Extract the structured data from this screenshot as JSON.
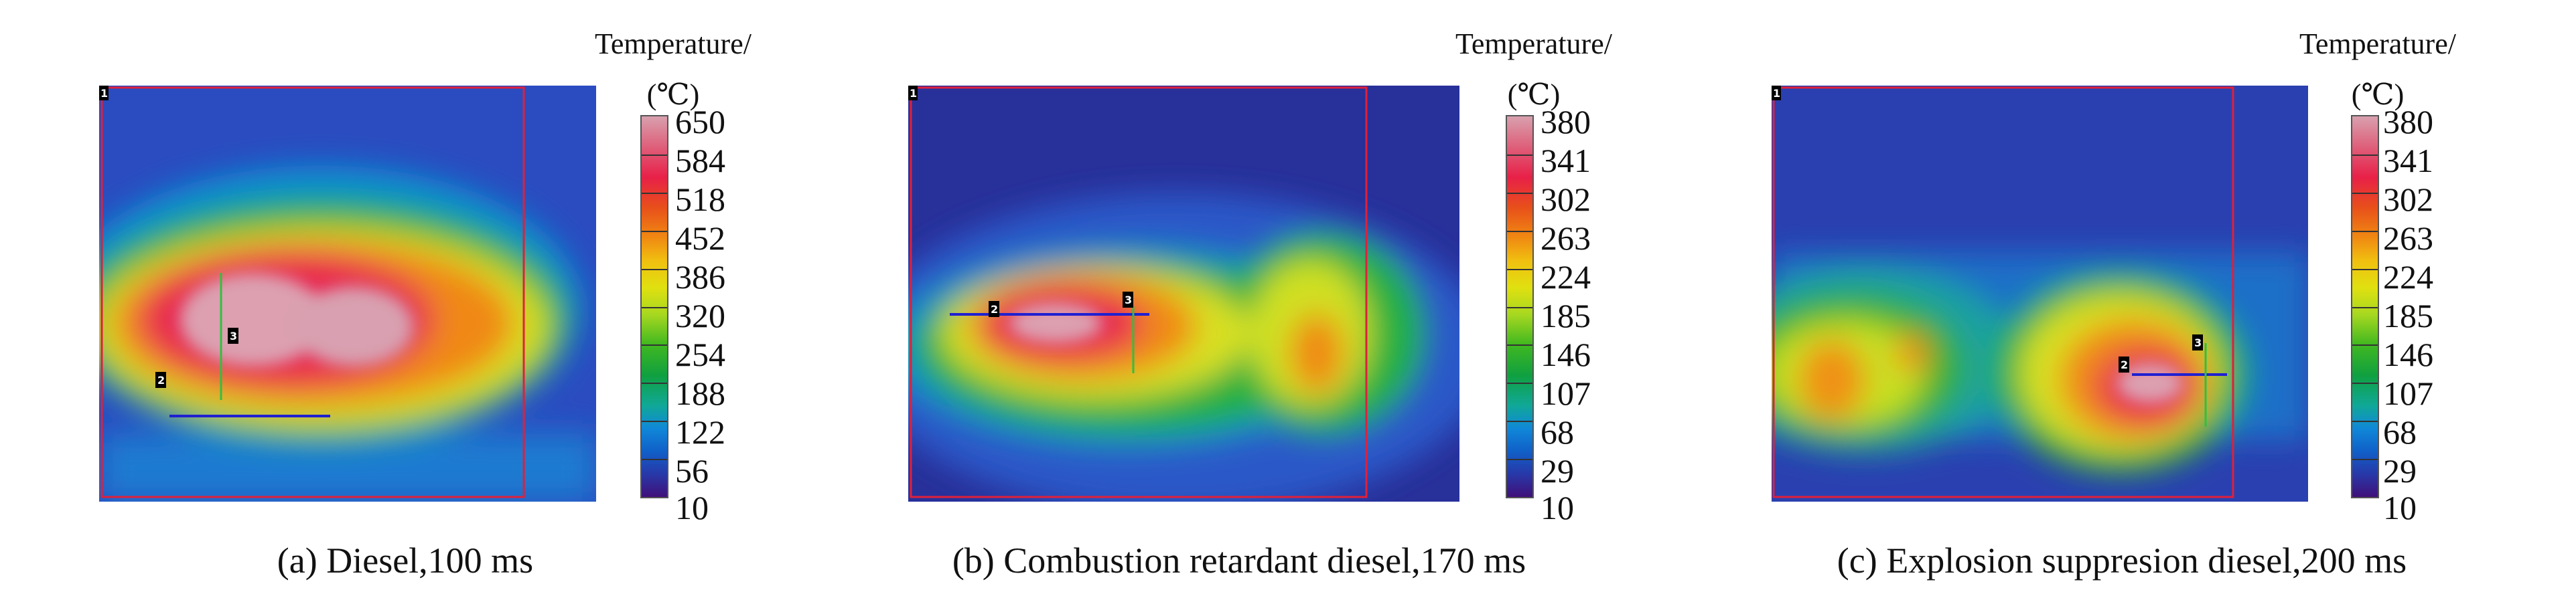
{
  "chart_data": [
    {
      "type": "heatmap",
      "caption": "(a) Diesel,100 ms",
      "colorbar": {
        "title": "Temperature/",
        "unit": "(℃)",
        "ticks": [
          "650",
          "584",
          "518",
          "452",
          "386",
          "320",
          "254",
          "188",
          "122",
          "56",
          "10"
        ],
        "range": [
          10,
          650
        ]
      },
      "markers": [
        "1",
        "2",
        "3"
      ]
    },
    {
      "type": "heatmap",
      "caption": "(b) Combustion retardant diesel,170 ms",
      "colorbar": {
        "title": "Temperature/",
        "unit": "(℃)",
        "ticks": [
          "380",
          "341",
          "302",
          "263",
          "224",
          "185",
          "146",
          "107",
          "68",
          "29",
          "10"
        ],
        "range": [
          10,
          380
        ]
      },
      "markers": [
        "1",
        "2",
        "3"
      ]
    },
    {
      "type": "heatmap",
      "caption": "(c) Explosion suppresion diesel,200 ms",
      "colorbar": {
        "title": "Temperature/",
        "unit": "(℃)",
        "ticks": [
          "380",
          "341",
          "302",
          "263",
          "224",
          "185",
          "146",
          "107",
          "68",
          "29",
          "10"
        ],
        "range": [
          10,
          380
        ]
      },
      "markers": [
        "1",
        "2",
        "3"
      ]
    }
  ],
  "colors": {
    "roi_box": "#e0203a",
    "line_2": "#2020d0",
    "line_3": "#30c040",
    "colormap": [
      "#d8a0ae",
      "#e82048",
      "#e8501a",
      "#f0c010",
      "#e0e010",
      "#40b820",
      "#10a898",
      "#1088d8",
      "#2838a8",
      "#40107a"
    ]
  }
}
